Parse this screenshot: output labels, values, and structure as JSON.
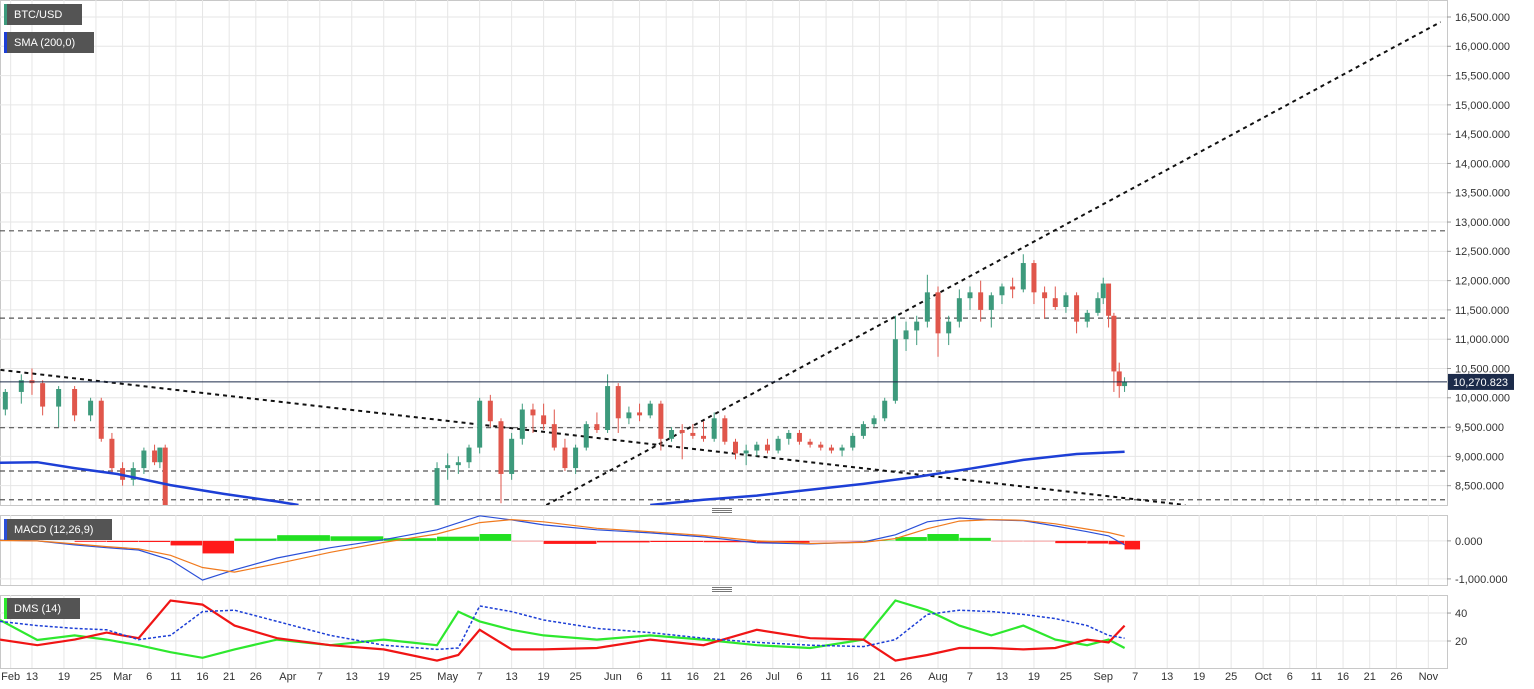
{
  "chart_data": [
    {
      "type": "candlestick",
      "name": "BTC/USD",
      "x": [
        39,
        42,
        44,
        46,
        49,
        52,
        55,
        57,
        59,
        61,
        63,
        65,
        67,
        68,
        69,
        120,
        122,
        124,
        126,
        128,
        130,
        132,
        134,
        136,
        138,
        140,
        142,
        144,
        146,
        148,
        150,
        152,
        154,
        156,
        158,
        160,
        162,
        164,
        166,
        168,
        170,
        172,
        174,
        176,
        178,
        180,
        182,
        184,
        186,
        188,
        190,
        192,
        194,
        196,
        198,
        200,
        202,
        204,
        206,
        208,
        210,
        212,
        214,
        216,
        218,
        220,
        222,
        224,
        226,
        228,
        230,
        232,
        234,
        236,
        238,
        240,
        242,
        244,
        245,
        246,
        247,
        248,
        249
      ],
      "open": [
        9800000,
        10100000,
        10300000,
        10250000,
        9850000,
        10150000,
        9700000,
        9950000,
        9300000,
        8800000,
        8600000,
        8800000,
        9100000,
        8900000,
        9150000,
        7800000,
        8800000,
        8850000,
        8900000,
        9150000,
        9950000,
        9600000,
        8700000,
        9300000,
        9800000,
        9700000,
        9550000,
        9150000,
        8800000,
        9150000,
        9550000,
        9450000,
        10200000,
        9650000,
        9750000,
        9700000,
        9900000,
        9300000,
        9450000,
        9400000,
        9350000,
        9300000,
        9650000,
        9250000,
        9050000,
        9100000,
        9200000,
        9100000,
        9300000,
        9400000,
        9250000,
        9200000,
        9150000,
        9100000,
        9150000,
        9350000,
        9550000,
        9650000,
        9950000,
        11000000,
        11150000,
        11300000,
        11800000,
        11100000,
        11300000,
        11700000,
        11800000,
        11500000,
        11750000,
        11900000,
        11850000,
        12300000,
        11800000,
        11700000,
        11550000,
        11750000,
        11300000,
        11450000,
        11700000,
        11950000,
        11400000,
        10450000,
        10200000
      ],
      "high": [
        10150000,
        10400000,
        10500000,
        10300000,
        10200000,
        10200000,
        10000000,
        10000000,
        9400000,
        8900000,
        8900000,
        9150000,
        9200000,
        9150000,
        9200000,
        8900000,
        9050000,
        9000000,
        9200000,
        10000000,
        10050000,
        9650000,
        9400000,
        9900000,
        9900000,
        9900000,
        9800000,
        9300000,
        9200000,
        9600000,
        9750000,
        10400000,
        10250000,
        9850000,
        9900000,
        9950000,
        9950000,
        9500000,
        9550000,
        9550000,
        9600000,
        9750000,
        9700000,
        9300000,
        9200000,
        9250000,
        9300000,
        9350000,
        9450000,
        9450000,
        9300000,
        9250000,
        9200000,
        9200000,
        9400000,
        9600000,
        9700000,
        10000000,
        11400000,
        11300000,
        11400000,
        12100000,
        11900000,
        11400000,
        11850000,
        11900000,
        12000000,
        11800000,
        11950000,
        12050000,
        12450000,
        12350000,
        11900000,
        11900000,
        11800000,
        11800000,
        11500000,
        11800000,
        12050000,
        11950000,
        11450000,
        10600000,
        10350000
      ],
      "low": [
        9700000,
        9900000,
        10050000,
        9700000,
        9500000,
        9600000,
        9600000,
        9250000,
        8700000,
        8500000,
        8500000,
        8700000,
        8850000,
        8800000,
        8000000,
        7700000,
        8600000,
        8700000,
        8800000,
        9050000,
        9500000,
        8200000,
        8600000,
        9200000,
        9400000,
        9450000,
        9100000,
        8750000,
        8700000,
        9100000,
        9400000,
        9400000,
        9400000,
        9550000,
        9600000,
        9650000,
        9100000,
        9250000,
        8950000,
        9300000,
        9250000,
        9250000,
        9200000,
        8950000,
        8850000,
        9000000,
        9050000,
        9050000,
        9200000,
        9200000,
        9150000,
        9100000,
        9050000,
        9000000,
        9100000,
        9300000,
        9500000,
        9600000,
        9900000,
        10800000,
        10900000,
        11200000,
        10700000,
        10900000,
        11200000,
        11500000,
        11300000,
        11200000,
        11600000,
        11700000,
        11800000,
        11600000,
        11350000,
        11500000,
        11450000,
        11100000,
        11200000,
        11400000,
        11600000,
        11200000,
        10100000,
        10000000,
        10100000
      ],
      "close": [
        10100000,
        10300000,
        10250000,
        9850000,
        10150000,
        9700000,
        9950000,
        9300000,
        8800000,
        8600000,
        8800000,
        9100000,
        8900000,
        9150000,
        8100000,
        8800000,
        8850000,
        8900000,
        9150000,
        9950000,
        9600000,
        8700000,
        9300000,
        9800000,
        9700000,
        9550000,
        9150000,
        8800000,
        9150000,
        9550000,
        9450000,
        10200000,
        9650000,
        9750000,
        9700000,
        9900000,
        9300000,
        9450000,
        9400000,
        9350000,
        9300000,
        9650000,
        9250000,
        9050000,
        9100000,
        9200000,
        9100000,
        9300000,
        9400000,
        9250000,
        9200000,
        9150000,
        9100000,
        9150000,
        9350000,
        9550000,
        9650000,
        9950000,
        11000000,
        11150000,
        11300000,
        11800000,
        11100000,
        11300000,
        11700000,
        11800000,
        11500000,
        11750000,
        11900000,
        11850000,
        12300000,
        11800000,
        11700000,
        11550000,
        11750000,
        11300000,
        11450000,
        11700000,
        11950000,
        11400000,
        10450000,
        10200000,
        10270823
      ],
      "up_color": "#3d9a7c",
      "down_color": "#e0564b",
      "series": [
        {
          "name": "SMA (200,0)",
          "color": "#1d3fd6",
          "x": [
            38,
            45,
            52,
            60,
            70,
            80,
            90,
            94,
            127,
            160,
            170,
            180,
            190,
            200,
            210,
            220,
            230,
            240,
            249
          ],
          "values": [
            8890000,
            8900000,
            8800000,
            8700000,
            8510000,
            8360000,
            8230000,
            8170000,
            null,
            8170000,
            8260000,
            8330000,
            8430000,
            8530000,
            8650000,
            8790000,
            8940000,
            9040000,
            9080000
          ]
        }
      ],
      "levels": [
        12850000,
        11360000,
        9490000,
        8750000,
        8260000
      ],
      "trendlines": [
        {
          "x": [
            140.5,
            308.3
          ],
          "values": [
            8170000,
            16415000
          ]
        },
        {
          "x": [
            38.1,
            260.4
          ],
          "values": [
            10476000,
            8170000
          ]
        }
      ],
      "last_price": {
        "value": 10270823,
        "label": "10,270.823"
      },
      "ylim": [
        8170000,
        16790000
      ],
      "yticks": [
        {
          "value": 8500000,
          "label": "8,500.000"
        },
        {
          "value": 9000000,
          "label": "9,000.000"
        },
        {
          "value": 9500000,
          "label": "9,500.000"
        },
        {
          "value": 10000000,
          "label": "10,000.000"
        },
        {
          "value": 10500000,
          "label": "10,500.000"
        },
        {
          "value": 11000000,
          "label": "11,000.000"
        },
        {
          "value": 11500000,
          "label": "11,500.000"
        },
        {
          "value": 12000000,
          "label": "12,000.000"
        },
        {
          "value": 12500000,
          "label": "12,500.000"
        },
        {
          "value": 13000000,
          "label": "13,000.000"
        },
        {
          "value": 13500000,
          "label": "13,500.000"
        },
        {
          "value": 14000000,
          "label": "14,000.000"
        },
        {
          "value": 14500000,
          "label": "14,500.000"
        },
        {
          "value": 15000000,
          "label": "15,000.000"
        },
        {
          "value": 15500000,
          "label": "15,500.000"
        },
        {
          "value": 16000000,
          "label": "16,000.000"
        },
        {
          "value": 16500000,
          "label": "16,500.000"
        }
      ],
      "grid": true
    },
    {
      "type": "macd",
      "name": "MACD (12,26,9)",
      "x": [
        38,
        45,
        52,
        58,
        64,
        70,
        76,
        82,
        90,
        100,
        110,
        120,
        128,
        134,
        140,
        150,
        160,
        170,
        180,
        190,
        200,
        206,
        212,
        218,
        224,
        230,
        236,
        242,
        246,
        249
      ],
      "histogram": {
        "up_color": "#22e022",
        "down_color": "#ff1a1a",
        "values": [
          10000,
          0,
          -25000,
          -30000,
          -30000,
          -120000,
          -330000,
          60000,
          150000,
          120000,
          70000,
          110000,
          180000,
          -10000,
          -80000,
          -40000,
          -30000,
          -35000,
          -50000,
          -10000,
          10000,
          100000,
          180000,
          80000,
          -10000,
          -10000,
          -60000,
          -70000,
          -90000,
          -225000
        ]
      },
      "series": [
        {
          "color": "#2a4fd8",
          "values": [
            20000,
            0,
            -105000,
            -180000,
            -240000,
            -500000,
            -1030000,
            -760000,
            -450000,
            -180000,
            30000,
            290000,
            660000,
            550000,
            420000,
            290000,
            210000,
            105000,
            -50000,
            -80000,
            -30000,
            160000,
            500000,
            600000,
            550000,
            530000,
            390000,
            240000,
            130000,
            -105000
          ]
        },
        {
          "color": "#f07a1e",
          "values": [
            10000,
            0,
            -80000,
            -150000,
            -210000,
            -380000,
            -700000,
            -820000,
            -600000,
            -300000,
            -40000,
            180000,
            480000,
            560000,
            500000,
            330000,
            240000,
            140000,
            0,
            -70000,
            -40000,
            60000,
            320000,
            520000,
            560000,
            540000,
            450000,
            310000,
            220000,
            120000
          ]
        }
      ],
      "ylim": [
        -1160000,
        680000
      ],
      "yticks": [
        {
          "value": 0,
          "label": "0.000"
        },
        {
          "value": -1000000,
          "label": "-1,000.000"
        }
      ],
      "grid": true
    },
    {
      "type": "dms",
      "name": "DMS (14)",
      "x": [
        38,
        45,
        52,
        58,
        64,
        70,
        76,
        82,
        90,
        100,
        110,
        120,
        124,
        128,
        134,
        140,
        150,
        160,
        170,
        180,
        190,
        200,
        206,
        212,
        218,
        224,
        230,
        236,
        242,
        246,
        249
      ],
      "series": [
        {
          "color": "#2ee82e",
          "style": "solid",
          "values": [
            35,
            20.7,
            24,
            21,
            17,
            12,
            8,
            14,
            21,
            17,
            21,
            17,
            41,
            34,
            28,
            24,
            21,
            24,
            21,
            17,
            15,
            21,
            49,
            42,
            31,
            24,
            31,
            21,
            17,
            21,
            15
          ]
        },
        {
          "color": "#f01515",
          "style": "solid",
          "values": [
            21,
            17,
            21,
            26,
            22,
            49,
            46,
            31,
            22,
            17,
            14,
            6,
            10,
            28,
            14,
            14,
            15,
            21,
            17,
            28,
            22,
            21,
            6,
            10,
            15,
            15,
            14,
            15,
            21,
            19,
            31
          ]
        },
        {
          "color": "#1d3fd6",
          "style": "dashed",
          "values": [
            34,
            31,
            29,
            28,
            21,
            24,
            41,
            42,
            34,
            24,
            17,
            14,
            15,
            45,
            41,
            35,
            29,
            26,
            22,
            19,
            17,
            16,
            21,
            39,
            42,
            41,
            39,
            36,
            31,
            24,
            22
          ]
        }
      ],
      "ylim": [
        0.7,
        52.9
      ],
      "yticks": [
        40,
        20
      ],
      "xlim": [
        38,
        309.5
      ],
      "xticks": [
        {
          "value": 40,
          "label": "Feb"
        },
        {
          "value": 44,
          "label": "13"
        },
        {
          "value": 50,
          "label": "19"
        },
        {
          "value": 56,
          "label": "25"
        },
        {
          "value": 61,
          "label": "Mar"
        },
        {
          "value": 66,
          "label": "6"
        },
        {
          "value": 71,
          "label": "11"
        },
        {
          "value": 76,
          "label": "16"
        },
        {
          "value": 81,
          "label": "21"
        },
        {
          "value": 86,
          "label": "26"
        },
        {
          "value": 92,
          "label": "Apr"
        },
        {
          "value": 98,
          "label": "7"
        },
        {
          "value": 104,
          "label": "13"
        },
        {
          "value": 110,
          "label": "19"
        },
        {
          "value": 116,
          "label": "25"
        },
        {
          "value": 122,
          "label": "May"
        },
        {
          "value": 128,
          "label": "7"
        },
        {
          "value": 134,
          "label": "13"
        },
        {
          "value": 140,
          "label": "19"
        },
        {
          "value": 146,
          "label": "25"
        },
        {
          "value": 153,
          "label": "Jun"
        },
        {
          "value": 158,
          "label": "6"
        },
        {
          "value": 163,
          "label": "11"
        },
        {
          "value": 168,
          "label": "16"
        },
        {
          "value": 173,
          "label": "21"
        },
        {
          "value": 178,
          "label": "26"
        },
        {
          "value": 183,
          "label": "Jul"
        },
        {
          "value": 188,
          "label": "6"
        },
        {
          "value": 193,
          "label": "11"
        },
        {
          "value": 198,
          "label": "16"
        },
        {
          "value": 203,
          "label": "21"
        },
        {
          "value": 208,
          "label": "26"
        },
        {
          "value": 214,
          "label": "Aug"
        },
        {
          "value": 220,
          "label": "7"
        },
        {
          "value": 226,
          "label": "13"
        },
        {
          "value": 232,
          "label": "19"
        },
        {
          "value": 238,
          "label": "25"
        },
        {
          "value": 245,
          "label": "Sep"
        },
        {
          "value": 251,
          "label": "7"
        },
        {
          "value": 257,
          "label": "13"
        },
        {
          "value": 263,
          "label": "19"
        },
        {
          "value": 269,
          "label": "25"
        },
        {
          "value": 275,
          "label": "Oct"
        },
        {
          "value": 280,
          "label": "6"
        },
        {
          "value": 285,
          "label": "11"
        },
        {
          "value": 290,
          "label": "16"
        },
        {
          "value": 295,
          "label": "21"
        },
        {
          "value": 300,
          "label": "26"
        },
        {
          "value": 306,
          "label": "Nov"
        }
      ],
      "grid": true
    }
  ]
}
